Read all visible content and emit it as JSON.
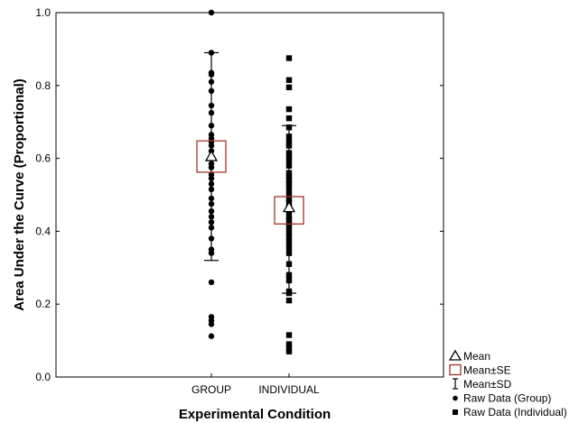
{
  "chart_data": {
    "type": "box",
    "xlabel": "Experimental Condition",
    "ylabel": "Area Under the Curve (Proportional)",
    "ylim": [
      0,
      1
    ],
    "y_ticks": [
      "0.0",
      "0.2",
      "0.4",
      "0.6",
      "0.8",
      "1.0"
    ],
    "categories": [
      "GROUP",
      "INDIVIDUAL"
    ],
    "groups": [
      {
        "category": "GROUP",
        "mean": 0.605,
        "se_low": 0.562,
        "se_high": 0.648,
        "sd_low": 0.32,
        "sd_high": 0.89,
        "raw_marker": "circle",
        "raw": [
          1.0,
          0.89,
          0.835,
          0.83,
          0.81,
          0.785,
          0.745,
          0.725,
          0.69,
          0.665,
          0.655,
          0.645,
          0.635,
          0.62,
          0.6,
          0.585,
          0.575,
          0.555,
          0.545,
          0.53,
          0.515,
          0.49,
          0.475,
          0.455,
          0.44,
          0.425,
          0.41,
          0.38,
          0.35,
          0.34,
          0.26,
          0.165,
          0.155,
          0.145,
          0.112
        ]
      },
      {
        "category": "INDIVIDUAL",
        "mean": 0.465,
        "se_low": 0.42,
        "se_high": 0.495,
        "sd_low": 0.23,
        "sd_high": 0.69,
        "raw_marker": "square",
        "raw": [
          0.875,
          0.815,
          0.795,
          0.735,
          0.71,
          0.685,
          0.66,
          0.645,
          0.635,
          0.615,
          0.605,
          0.595,
          0.58,
          0.56,
          0.55,
          0.54,
          0.53,
          0.52,
          0.505,
          0.49,
          0.48,
          0.465,
          0.455,
          0.44,
          0.43,
          0.42,
          0.41,
          0.395,
          0.385,
          0.37,
          0.355,
          0.34,
          0.31,
          0.28,
          0.265,
          0.235,
          0.23,
          0.21,
          0.115,
          0.09,
          0.08,
          0.07
        ]
      }
    ],
    "legend": {
      "position": "bottom-right",
      "items": [
        {
          "label": "Mean",
          "symbol": "triangle"
        },
        {
          "label": "Mean±SE",
          "symbol": "red-box"
        },
        {
          "label": "Mean±SD",
          "symbol": "whisker"
        },
        {
          "label": "Raw Data (Group)",
          "symbol": "circle"
        },
        {
          "label": "Raw Data (Individual)",
          "symbol": "square"
        }
      ]
    },
    "colors": {
      "box": "#a3332a",
      "points": "#000000",
      "axis": "#000000"
    }
  }
}
